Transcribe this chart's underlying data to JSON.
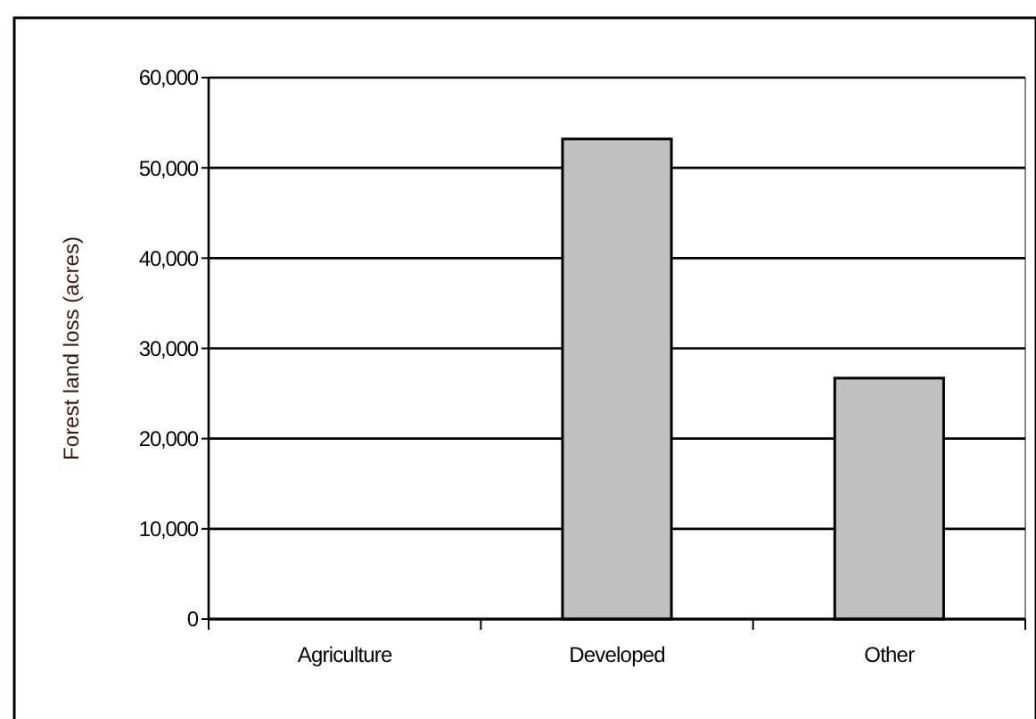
{
  "chart_data": {
    "type": "bar",
    "ylabel": "Forest land loss (acres)",
    "categories": [
      "Agriculture",
      "Developed",
      "Other"
    ],
    "values": [
      0,
      53200,
      26700
    ],
    "color": "#c0c0c0",
    "ylim": [
      0,
      60000
    ],
    "yticks": [
      {
        "value": 0,
        "label": "0"
      },
      {
        "value": 10000,
        "label": "10,000"
      },
      {
        "value": 20000,
        "label": "20,000"
      },
      {
        "value": 30000,
        "label": "30,000"
      },
      {
        "value": 40000,
        "label": "40,000"
      },
      {
        "value": 50000,
        "label": "50,000"
      },
      {
        "value": 60000,
        "label": "60,000"
      }
    ],
    "grid": "y"
  }
}
